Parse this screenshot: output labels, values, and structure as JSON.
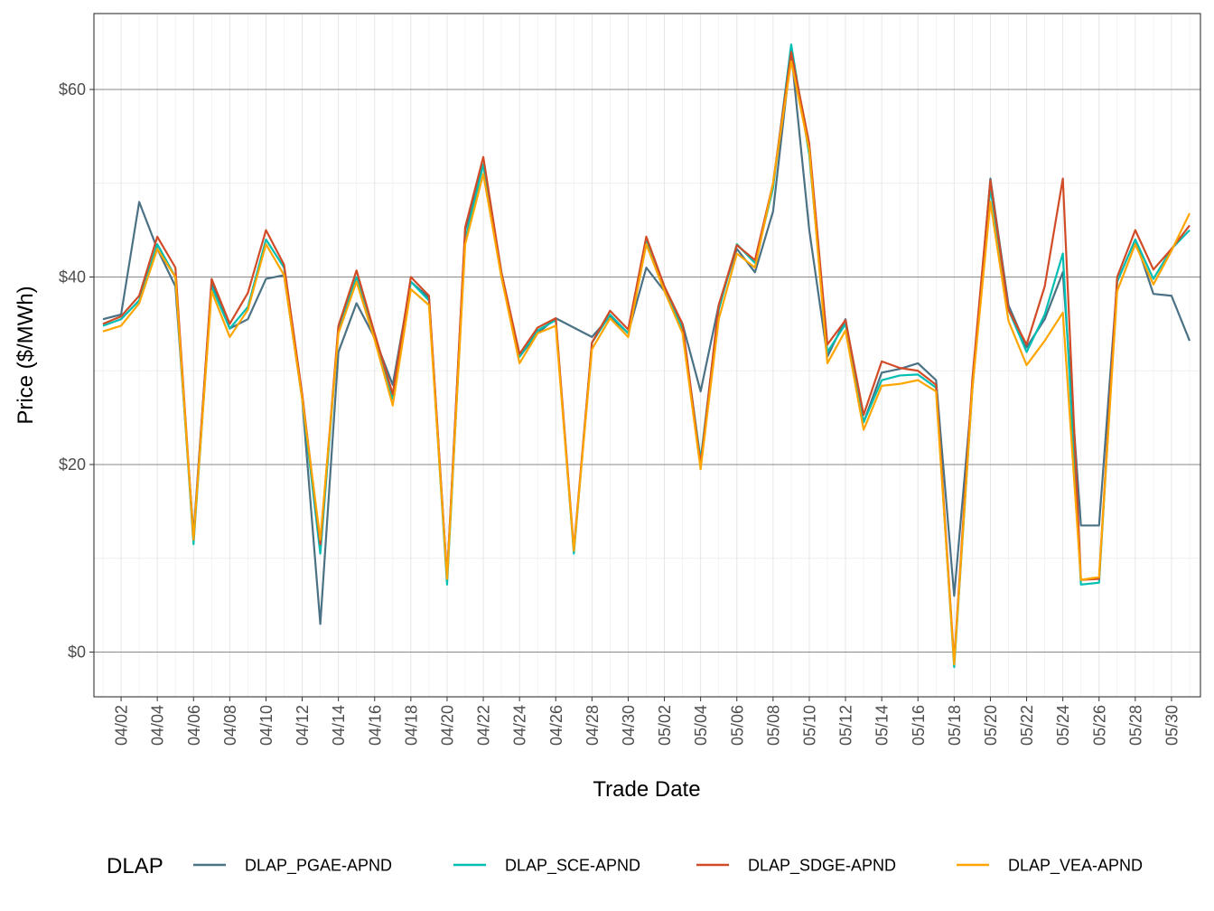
{
  "chart_data": {
    "type": "line",
    "xlabel": "Trade Date",
    "ylabel": "Price ($/MWh)",
    "ylim": [
      -5,
      68
    ],
    "y_ticks": [
      {
        "value": 0,
        "label": "$0"
      },
      {
        "value": 20,
        "label": "$20"
      },
      {
        "value": 40,
        "label": "$40"
      },
      {
        "value": 60,
        "label": "$60"
      }
    ],
    "x_tick_labels": [
      "04/02",
      "04/04",
      "04/06",
      "04/08",
      "04/10",
      "04/12",
      "04/14",
      "04/16",
      "04/18",
      "04/20",
      "04/22",
      "04/24",
      "04/26",
      "04/28",
      "04/30",
      "05/02",
      "05/04",
      "05/06",
      "05/08",
      "05/10",
      "05/12",
      "05/14",
      "05/16",
      "05/18",
      "05/20",
      "05/22",
      "05/24",
      "05/26",
      "05/28",
      "05/30"
    ],
    "x": [
      "04/01",
      "04/02",
      "04/03",
      "04/04",
      "04/05",
      "04/06",
      "04/07",
      "04/08",
      "04/09",
      "04/10",
      "04/11",
      "04/12",
      "04/13",
      "04/14",
      "04/15",
      "04/16",
      "04/17",
      "04/18",
      "04/19",
      "04/20",
      "04/21",
      "04/22",
      "04/23",
      "04/24",
      "04/25",
      "04/26",
      "04/27",
      "04/28",
      "04/29",
      "04/30",
      "05/01",
      "05/02",
      "05/03",
      "05/04",
      "05/05",
      "05/06",
      "05/07",
      "05/08",
      "05/09",
      "05/10",
      "05/11",
      "05/12",
      "05/13",
      "05/14",
      "05/15",
      "05/16",
      "05/17",
      "05/18",
      "05/19",
      "05/20",
      "05/21",
      "05/22",
      "05/23",
      "05/24",
      "05/25",
      "05/26",
      "05/27",
      "05/28",
      "05/29",
      "05/30",
      "05/31"
    ],
    "grid": true,
    "legend": {
      "title": "DLAP",
      "position": "bottom"
    },
    "series": [
      {
        "name": "DLAP_PGAE-APND",
        "color": "#4a7184",
        "values": [
          35.5,
          36.0,
          48.0,
          43.0,
          39.0,
          12.5,
          39.5,
          34.5,
          35.5,
          39.8,
          40.2,
          27.0,
          3.0,
          32.0,
          37.2,
          33.5,
          28.5,
          39.5,
          37.8,
          8.0,
          45.0,
          52.0,
          40.5,
          31.5,
          34.0,
          35.6,
          34.6,
          33.6,
          35.8,
          34.0,
          41.0,
          38.5,
          35.0,
          27.8,
          37.0,
          43.0,
          40.5,
          47.0,
          64.0,
          45.0,
          31.5,
          35.5,
          24.5,
          29.8,
          30.2,
          30.8,
          29.0,
          6.0,
          28.0,
          50.5,
          37.0,
          32.5,
          35.5,
          40.5,
          13.5,
          13.5,
          39.5,
          44.0,
          38.2,
          38.0,
          33.2
        ]
      },
      {
        "name": "DLAP_SCE-APND",
        "color": "#00bfb2",
        "values": [
          34.8,
          35.5,
          37.5,
          43.5,
          40.0,
          11.5,
          39.0,
          34.5,
          36.8,
          44.0,
          41.0,
          27.0,
          10.5,
          34.5,
          40.0,
          33.5,
          27.0,
          39.5,
          37.5,
          7.2,
          44.0,
          52.0,
          40.0,
          31.5,
          34.3,
          35.4,
          10.5,
          33.0,
          36.0,
          34.0,
          44.0,
          38.5,
          34.5,
          20.5,
          36.5,
          43.5,
          41.5,
          49.5,
          64.8,
          53.0,
          32.0,
          35.0,
          24.5,
          29.0,
          29.5,
          29.6,
          28.2,
          -1.6,
          28.0,
          49.5,
          36.5,
          32.0,
          36.0,
          42.5,
          7.2,
          7.4,
          39.5,
          44.0,
          39.8,
          43.0,
          45.0
        ]
      },
      {
        "name": "DLAP_SDGE-APND",
        "color": "#d24b27",
        "values": [
          35.0,
          35.8,
          38.0,
          44.3,
          41.0,
          12.0,
          39.8,
          35.0,
          38.3,
          45.0,
          41.3,
          27.5,
          11.5,
          34.8,
          40.7,
          34.0,
          27.5,
          40.0,
          38.0,
          8.0,
          45.3,
          52.8,
          40.5,
          31.8,
          34.6,
          35.6,
          11.0,
          33.0,
          36.4,
          34.4,
          44.3,
          39.0,
          35.0,
          20.0,
          37.0,
          43.4,
          41.8,
          50.0,
          64.0,
          54.2,
          32.8,
          35.4,
          25.3,
          31.0,
          30.3,
          30.0,
          28.5,
          -1.0,
          29.0,
          50.3,
          36.5,
          32.8,
          39.0,
          50.5,
          7.7,
          7.8,
          40.0,
          45.0,
          40.8,
          43.0,
          45.5
        ]
      },
      {
        "name": "DLAP_VEA-APND",
        "color": "#ffa500",
        "values": [
          34.2,
          34.8,
          37.2,
          43.0,
          40.0,
          12.0,
          38.5,
          33.6,
          36.5,
          43.5,
          40.2,
          27.0,
          12.0,
          34.0,
          39.5,
          33.3,
          26.3,
          38.7,
          37.0,
          7.8,
          43.5,
          51.0,
          40.0,
          30.8,
          34.0,
          34.8,
          10.8,
          32.3,
          35.6,
          33.6,
          43.5,
          38.5,
          34.0,
          19.5,
          35.5,
          42.5,
          41.0,
          50.0,
          63.0,
          53.5,
          30.8,
          34.3,
          23.7,
          28.4,
          28.6,
          29.0,
          27.8,
          -1.3,
          28.0,
          48.0,
          35.3,
          30.6,
          33.2,
          36.2,
          7.7,
          8.0,
          38.5,
          43.5,
          39.2,
          42.8,
          46.8
        ]
      }
    ]
  }
}
